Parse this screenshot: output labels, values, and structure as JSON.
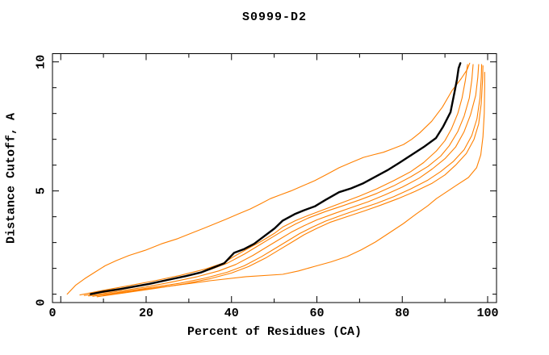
{
  "chart_data": {
    "type": "line",
    "title": "S0999-D2",
    "xlabel": "Percent of Residues (CA)",
    "ylabel": "Distance Cutoff, A",
    "xlim": [
      0,
      100
    ],
    "ylim": [
      0,
      10
    ],
    "x_major_ticks": [
      0,
      20,
      40,
      60,
      80,
      100
    ],
    "x_minor_ticks": [
      10,
      30,
      50,
      70,
      90
    ],
    "y_labeled_ticks": [
      0,
      5,
      10
    ],
    "y_minor_ticks": [
      1,
      2,
      3,
      4,
      5,
      6,
      7,
      8,
      9,
      10
    ],
    "grid": false,
    "legend_position": "none",
    "frame_color": "#000000",
    "background_color": "#ffffff",
    "series": [
      {
        "name": "orange-high-outlier",
        "color": "#ff8000",
        "width": 1.1,
        "points": [
          [
            1.5,
            1.0
          ],
          [
            3.5,
            1.35
          ],
          [
            5.6,
            1.6
          ],
          [
            8,
            1.85
          ],
          [
            10.4,
            2.1
          ],
          [
            13,
            2.3
          ],
          [
            16,
            2.5
          ],
          [
            19.8,
            2.7
          ],
          [
            23.6,
            2.95
          ],
          [
            27.4,
            3.15
          ],
          [
            31.2,
            3.4
          ],
          [
            35,
            3.65
          ],
          [
            38.7,
            3.9
          ],
          [
            41.5,
            4.1
          ],
          [
            44.4,
            4.3
          ],
          [
            46.8,
            4.5
          ],
          [
            49.1,
            4.7
          ],
          [
            51.5,
            4.85
          ],
          [
            53.9,
            5.0
          ],
          [
            56.7,
            5.2
          ],
          [
            59.5,
            5.4
          ],
          [
            62.4,
            5.65
          ],
          [
            65.2,
            5.9
          ],
          [
            68,
            6.1
          ],
          [
            70.9,
            6.3
          ],
          [
            73.2,
            6.4
          ],
          [
            75.6,
            6.5
          ],
          [
            78,
            6.65
          ],
          [
            80.3,
            6.8
          ],
          [
            82.2,
            7.0
          ],
          [
            84.1,
            7.25
          ],
          [
            86.9,
            7.7
          ],
          [
            89.4,
            8.25
          ],
          [
            91.7,
            8.9
          ],
          [
            93.8,
            9.35
          ],
          [
            95.2,
            9.7
          ],
          [
            95.8,
            9.95
          ]
        ]
      },
      {
        "name": "orange-bundle-1",
        "color": "#ff8000",
        "width": 1.1,
        "points": [
          [
            4.5,
            0.97
          ],
          [
            10,
            1.15
          ],
          [
            16,
            1.33
          ],
          [
            22,
            1.52
          ],
          [
            28,
            1.73
          ],
          [
            34,
            1.98
          ],
          [
            38,
            2.2
          ],
          [
            41,
            2.5
          ],
          [
            44,
            2.78
          ],
          [
            47,
            3.05
          ],
          [
            50,
            3.35
          ],
          [
            52,
            3.6
          ],
          [
            55,
            3.85
          ],
          [
            58,
            4.05
          ],
          [
            62,
            4.3
          ],
          [
            66,
            4.55
          ],
          [
            70,
            4.8
          ],
          [
            74,
            5.08
          ],
          [
            78,
            5.4
          ],
          [
            82,
            5.75
          ],
          [
            85,
            6.1
          ],
          [
            88,
            6.55
          ],
          [
            90,
            6.95
          ],
          [
            91.5,
            7.4
          ],
          [
            93,
            8.0
          ],
          [
            94,
            8.6
          ],
          [
            94.8,
            9.3
          ],
          [
            95.3,
            9.9
          ]
        ]
      },
      {
        "name": "orange-bundle-2",
        "color": "#ff8000",
        "width": 1.1,
        "points": [
          [
            5.5,
            0.95
          ],
          [
            12,
            1.12
          ],
          [
            18,
            1.3
          ],
          [
            24,
            1.5
          ],
          [
            30,
            1.72
          ],
          [
            35,
            1.95
          ],
          [
            39,
            2.2
          ],
          [
            43,
            2.55
          ],
          [
            46,
            2.85
          ],
          [
            49,
            3.15
          ],
          [
            52,
            3.45
          ],
          [
            55,
            3.72
          ],
          [
            58,
            3.95
          ],
          [
            62,
            4.2
          ],
          [
            66,
            4.42
          ],
          [
            70,
            4.65
          ],
          [
            74,
            4.9
          ],
          [
            78,
            5.2
          ],
          [
            82,
            5.55
          ],
          [
            86,
            5.95
          ],
          [
            89,
            6.35
          ],
          [
            91,
            6.75
          ],
          [
            93,
            7.3
          ],
          [
            94.5,
            7.9
          ],
          [
            95.7,
            8.6
          ],
          [
            96.3,
            9.3
          ],
          [
            96.6,
            9.9
          ]
        ]
      },
      {
        "name": "orange-bundle-3",
        "color": "#ff8000",
        "width": 1.1,
        "points": [
          [
            6.5,
            0.93
          ],
          [
            13,
            1.1
          ],
          [
            20,
            1.28
          ],
          [
            26,
            1.47
          ],
          [
            32,
            1.68
          ],
          [
            37,
            1.9
          ],
          [
            41,
            2.15
          ],
          [
            45,
            2.5
          ],
          [
            48,
            2.8
          ],
          [
            51,
            3.1
          ],
          [
            54,
            3.4
          ],
          [
            57,
            3.65
          ],
          [
            60,
            3.88
          ],
          [
            64,
            4.12
          ],
          [
            68,
            4.35
          ],
          [
            72,
            4.58
          ],
          [
            76,
            4.85
          ],
          [
            80,
            5.15
          ],
          [
            84,
            5.5
          ],
          [
            87,
            5.85
          ],
          [
            90,
            6.25
          ],
          [
            92.5,
            6.7
          ],
          [
            94.5,
            7.3
          ],
          [
            96,
            7.95
          ],
          [
            97.2,
            8.7
          ],
          [
            97.7,
            9.4
          ],
          [
            97.9,
            9.9
          ]
        ]
      },
      {
        "name": "orange-bundle-4",
        "color": "#ff8000",
        "width": 1.1,
        "points": [
          [
            7.5,
            0.92
          ],
          [
            14,
            1.08
          ],
          [
            21,
            1.25
          ],
          [
            28,
            1.43
          ],
          [
            34,
            1.63
          ],
          [
            39,
            1.85
          ],
          [
            43,
            2.1
          ],
          [
            47,
            2.45
          ],
          [
            50,
            2.75
          ],
          [
            53,
            3.05
          ],
          [
            56,
            3.35
          ],
          [
            59,
            3.6
          ],
          [
            62,
            3.83
          ],
          [
            66,
            4.07
          ],
          [
            70,
            4.3
          ],
          [
            74,
            4.52
          ],
          [
            78,
            4.78
          ],
          [
            82,
            5.08
          ],
          [
            86,
            5.42
          ],
          [
            89,
            5.75
          ],
          [
            92,
            6.15
          ],
          [
            94.5,
            6.6
          ],
          [
            96.3,
            7.15
          ],
          [
            97.5,
            7.8
          ],
          [
            98.2,
            8.6
          ],
          [
            98.5,
            9.4
          ],
          [
            98.6,
            9.9
          ]
        ]
      },
      {
        "name": "orange-bundle-5",
        "color": "#ff8000",
        "width": 1.1,
        "points": [
          [
            8.5,
            0.9
          ],
          [
            15,
            1.05
          ],
          [
            22,
            1.22
          ],
          [
            29,
            1.4
          ],
          [
            35,
            1.6
          ],
          [
            40,
            1.82
          ],
          [
            44,
            2.07
          ],
          [
            48,
            2.4
          ],
          [
            51,
            2.7
          ],
          [
            54,
            3.0
          ],
          [
            57,
            3.3
          ],
          [
            60,
            3.55
          ],
          [
            63,
            3.78
          ],
          [
            67,
            4.0
          ],
          [
            71,
            4.22
          ],
          [
            75,
            4.45
          ],
          [
            79,
            4.7
          ],
          [
            83,
            4.98
          ],
          [
            87,
            5.3
          ],
          [
            90,
            5.62
          ],
          [
            92.5,
            6.0
          ],
          [
            95,
            6.45
          ],
          [
            96.8,
            7.0
          ],
          [
            97.9,
            7.6
          ],
          [
            98.5,
            8.4
          ],
          [
            98.8,
            9.3
          ],
          [
            98.9,
            9.85
          ]
        ]
      },
      {
        "name": "orange-low-outlier",
        "color": "#ff8000",
        "width": 1.1,
        "points": [
          [
            10,
            0.96
          ],
          [
            17.9,
            1.15
          ],
          [
            26.4,
            1.33
          ],
          [
            34.9,
            1.52
          ],
          [
            43.4,
            1.68
          ],
          [
            52,
            1.77
          ],
          [
            55.7,
            1.9
          ],
          [
            59.5,
            2.08
          ],
          [
            63.3,
            2.25
          ],
          [
            67.1,
            2.46
          ],
          [
            70.4,
            2.72
          ],
          [
            73.7,
            3.02
          ],
          [
            77,
            3.38
          ],
          [
            80.3,
            3.74
          ],
          [
            83.2,
            4.1
          ],
          [
            86,
            4.43
          ],
          [
            88,
            4.7
          ],
          [
            89.8,
            4.9
          ],
          [
            92.6,
            5.21
          ],
          [
            95.5,
            5.52
          ],
          [
            97.4,
            5.9
          ],
          [
            98.4,
            6.4
          ],
          [
            98.9,
            7.1
          ],
          [
            99.2,
            8.0
          ],
          [
            99.3,
            9.0
          ],
          [
            99.3,
            9.6
          ]
        ]
      },
      {
        "name": "black-model-curve",
        "color": "#000000",
        "width": 2.4,
        "points": [
          [
            7,
            1.0
          ],
          [
            10,
            1.1
          ],
          [
            14,
            1.2
          ],
          [
            20.8,
            1.4
          ],
          [
            25,
            1.55
          ],
          [
            29.3,
            1.7
          ],
          [
            33,
            1.85
          ],
          [
            35.3,
            2.0
          ],
          [
            38.3,
            2.2
          ],
          [
            40.6,
            2.6
          ],
          [
            43,
            2.75
          ],
          [
            45.3,
            2.95
          ],
          [
            47.7,
            3.25
          ],
          [
            50.1,
            3.55
          ],
          [
            52,
            3.85
          ],
          [
            54.8,
            4.1
          ],
          [
            57,
            4.25
          ],
          [
            59.5,
            4.4
          ],
          [
            62,
            4.65
          ],
          [
            65.2,
            4.95
          ],
          [
            68,
            5.1
          ],
          [
            70.9,
            5.3
          ],
          [
            73.7,
            5.55
          ],
          [
            76.5,
            5.8
          ],
          [
            79.4,
            6.1
          ],
          [
            82.2,
            6.4
          ],
          [
            85,
            6.7
          ],
          [
            87.9,
            7.05
          ],
          [
            89.6,
            7.5
          ],
          [
            91.3,
            8.05
          ],
          [
            92.2,
            8.8
          ],
          [
            92.8,
            9.3
          ],
          [
            93.2,
            9.75
          ],
          [
            93.6,
            9.95
          ]
        ]
      }
    ]
  }
}
